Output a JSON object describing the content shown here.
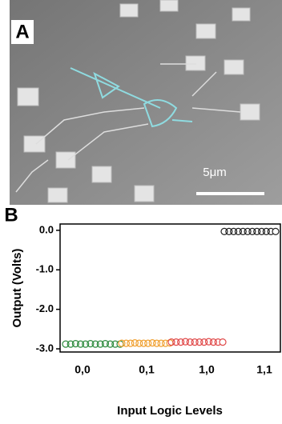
{
  "panels": [
    {
      "label": "A",
      "scale_bar": "5μm"
    },
    {
      "label": "B"
    }
  ],
  "chart_data": {
    "type": "scatter",
    "x_label": "Input Logic Levels",
    "y_label": "Output (Volts)",
    "categories": [
      "0,0",
      "0,1",
      "1,0",
      "1,1"
    ],
    "series": [
      {
        "color": "#2e8b3e",
        "values": [
          -2.88,
          -2.88,
          -2.87,
          -2.88,
          -2.88,
          -2.87,
          -2.88,
          -2.88,
          -2.87,
          -2.88,
          -2.88,
          -2.88
        ]
      },
      {
        "color": "#f0a030",
        "values": [
          -2.86,
          -2.86,
          -2.86,
          -2.85,
          -2.86,
          -2.86,
          -2.86,
          -2.85,
          -2.86,
          -2.86,
          -2.86,
          -2.85
        ]
      },
      {
        "color": "#e04848",
        "values": [
          -2.83,
          -2.83,
          -2.83,
          -2.82,
          -2.83,
          -2.83,
          -2.83,
          -2.83,
          -2.82,
          -2.83,
          -2.83,
          -2.83
        ]
      },
      {
        "color": "#222222",
        "values": [
          -0.03,
          -0.03,
          -0.03,
          -0.03,
          -0.03,
          -0.03,
          -0.03,
          -0.03,
          -0.03,
          -0.03,
          -0.03,
          -0.03
        ]
      }
    ],
    "ylim": [
      -3.08,
      0.16
    ],
    "yticks": [
      {
        "value": 0,
        "label": "0.0"
      },
      {
        "value": -1,
        "label": "-1.0"
      },
      {
        "value": -2,
        "label": "-2.0"
      },
      {
        "value": -3,
        "label": "-3.0"
      }
    ]
  }
}
